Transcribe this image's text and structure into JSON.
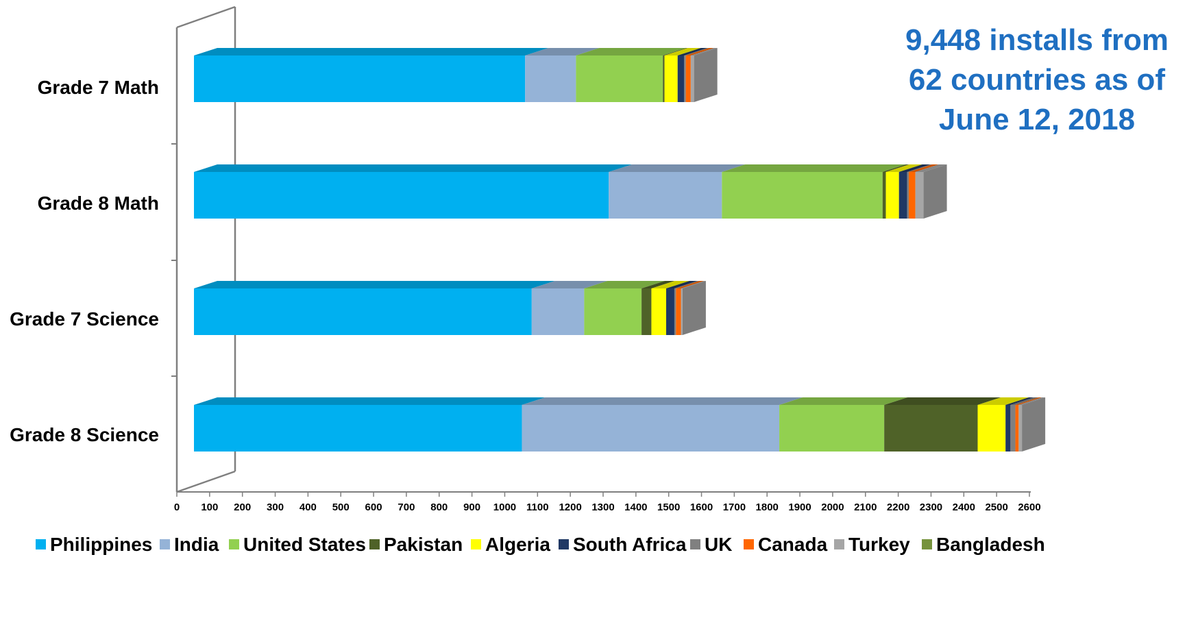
{
  "annotation": {
    "lines": [
      "9,448 installs from",
      "62 countries as of",
      "June 12, 2018"
    ]
  },
  "colors": {
    "Philippines": "#00b0f0",
    "India": "#95b3d7",
    "United States": "#92d050",
    "Pakistan": "#4f6228",
    "Algeria": "#ffff00",
    "South Africa": "#1f3864",
    "UK": "#808080",
    "Canada": "#ff6600",
    "Turkey": "#a6a6a6",
    "Bangladesh": "#76933c",
    "annotation": "#1f6fc1"
  },
  "chart_data": {
    "type": "bar",
    "orientation": "horizontal",
    "stacked": true,
    "categories": [
      "Grade 7 Math",
      "Grade 8 Math",
      "Grade 7 Science",
      "Grade 8 Science"
    ],
    "xlim": [
      0,
      2600
    ],
    "xticks": [
      0,
      100,
      200,
      300,
      400,
      500,
      600,
      700,
      800,
      900,
      1000,
      1100,
      1200,
      1300,
      1400,
      1500,
      1600,
      1700,
      1800,
      1900,
      2000,
      2100,
      2200,
      2300,
      2400,
      2500,
      2600
    ],
    "grid": false,
    "legend_position": "bottom",
    "series": [
      {
        "name": "Philippines",
        "values": [
          1010,
          1265,
          1030,
          1000
        ]
      },
      {
        "name": "India",
        "values": [
          155,
          345,
          160,
          785
        ]
      },
      {
        "name": "United States",
        "values": [
          265,
          490,
          175,
          320
        ]
      },
      {
        "name": "Pakistan",
        "values": [
          5,
          10,
          30,
          285
        ]
      },
      {
        "name": "Algeria",
        "values": [
          40,
          40,
          45,
          85
        ]
      },
      {
        "name": "South Africa",
        "values": [
          20,
          25,
          25,
          15
        ]
      },
      {
        "name": "UK",
        "values": [
          5,
          5,
          5,
          15
        ]
      },
      {
        "name": "Canada",
        "values": [
          15,
          20,
          15,
          10
        ]
      },
      {
        "name": "Turkey",
        "values": [
          10,
          25,
          5,
          10
        ]
      },
      {
        "name": "Bangladesh",
        "values": [
          0,
          0,
          0,
          0
        ]
      }
    ]
  }
}
